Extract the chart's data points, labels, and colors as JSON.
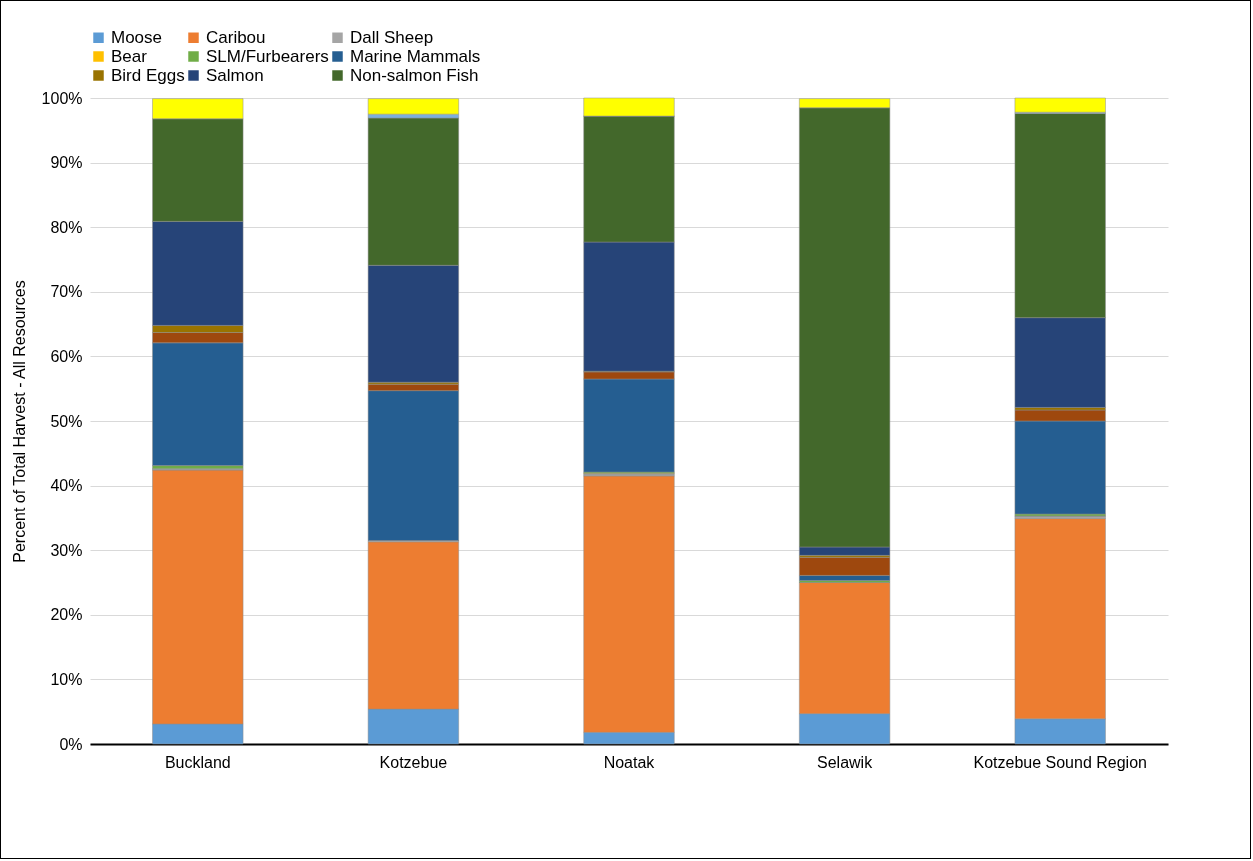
{
  "chart_data": {
    "type": "bar",
    "stacked": true,
    "ylabel": "Percent of Total Harvest - All Resources",
    "categories": [
      "Buckland",
      "Kotzebue",
      "Noatak",
      "Selawik",
      "Kotzebue Sound Region"
    ],
    "series": [
      {
        "name": "Moose",
        "color": "#5b9bd5",
        "values": [
          3.1,
          5.4,
          1.8,
          4.7,
          3.9
        ]
      },
      {
        "name": "Caribou",
        "color": "#ed7d31",
        "values": [
          39.3,
          25.9,
          39.7,
          20.3,
          31.0
        ]
      },
      {
        "name": "Dall Sheep",
        "color": "#a5a5a5",
        "values": [
          0.2,
          0.2,
          0.3,
          null,
          0.4
        ]
      },
      {
        "name": "Bear",
        "color": "#ffc000",
        "values": [
          null,
          0,
          0.1,
          0,
          0
        ]
      },
      {
        "name": "SLM/Furbearers",
        "color": "#70ad47",
        "values": [
          0.5,
          null,
          0.2,
          0.3,
          0.3
        ]
      },
      {
        "name": "Marine Mammals",
        "color": "#255e91",
        "values": [
          19.0,
          23.2,
          14.4,
          0.8,
          14.4
        ]
      },
      {
        "color": "#9e480e",
        "values": [
          1.6,
          1.0,
          1.1,
          2.8,
          1.7
        ]
      },
      {
        "name": "Bird Eggs",
        "color": "#997300",
        "values": [
          1.1,
          0.3,
          0.1,
          0.3,
          0.4
        ]
      },
      {
        "name": "Salmon",
        "color": "#264478",
        "values": [
          16.1,
          18.1,
          20.0,
          1.3,
          13.9
        ]
      },
      {
        "name": "Non-salmon Fish",
        "color": "#43682b",
        "values": [
          15.9,
          22.8,
          19.5,
          68.0,
          31.6
        ]
      },
      {
        "color": "#7cafdd",
        "values": [
          0,
          0.6,
          0,
          0,
          0.2
        ]
      },
      {
        "color": "#ffff00",
        "values": [
          3.1,
          2.4,
          2.8,
          1.4,
          2.2
        ]
      }
    ],
    "ylim": [
      0,
      100
    ],
    "yticks": [
      {
        "value": 0,
        "label": "0%"
      },
      {
        "value": 10,
        "label": "10%"
      },
      {
        "value": 20,
        "label": "20%"
      },
      {
        "value": 30,
        "label": "30%"
      },
      {
        "value": 40,
        "label": "40%"
      },
      {
        "value": 50,
        "label": "50%"
      },
      {
        "value": 60,
        "label": "60%"
      },
      {
        "value": 70,
        "label": "70%"
      },
      {
        "value": 80,
        "label": "80%"
      },
      {
        "value": 90,
        "label": "90%"
      },
      {
        "value": 100,
        "label": "100%"
      }
    ],
    "grid": "y",
    "legend": "top"
  }
}
